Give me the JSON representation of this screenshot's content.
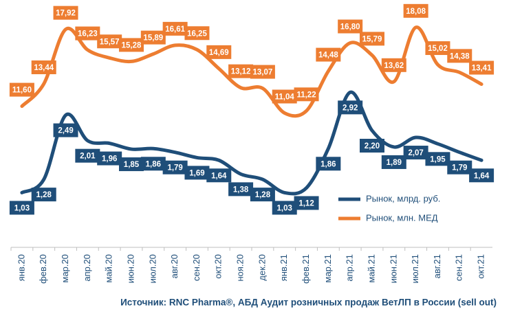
{
  "chart_data": {
    "type": "line",
    "categories": [
      "янв.20",
      "фев.20",
      "мар.20",
      "апр.20",
      "май.20",
      "июн.20",
      "июл.20",
      "авг.20",
      "сен.20",
      "окт.20",
      "ноя.20",
      "дек.20",
      "янв.21",
      "фев.21",
      "мар.21",
      "апр.21",
      "май.21",
      "июн.21",
      "июл.21",
      "авг.21",
      "сен.21",
      "окт.21"
    ],
    "series": [
      {
        "name": "Рынок, млрд. руб.",
        "color": "#1f4e79",
        "values": [
          1.03,
          1.28,
          2.49,
          2.01,
          1.96,
          1.85,
          1.86,
          1.79,
          1.69,
          1.64,
          1.38,
          1.28,
          1.03,
          1.12,
          1.86,
          2.92,
          2.2,
          1.89,
          2.07,
          1.95,
          1.79,
          1.64
        ],
        "value_labels": [
          "1,03",
          "1,28",
          "2,49",
          "2,01",
          "1,96",
          "1,85",
          "1,86",
          "1,79",
          "1,69",
          "1,64",
          "1,38",
          "1,28",
          "1,03",
          "1,12",
          "1,86",
          "2,92",
          "2,20",
          "1,89",
          "2,07",
          "1,95",
          "1,79",
          "1,64"
        ]
      },
      {
        "name": "Рынок, млн. МЕД",
        "color": "#ed7d31",
        "axis": "y2",
        "values": [
          11.6,
          13.44,
          17.92,
          16.23,
          15.57,
          15.28,
          15.89,
          16.61,
          16.25,
          14.69,
          13.12,
          13.07,
          11.04,
          11.22,
          14.48,
          16.8,
          15.79,
          13.62,
          18.08,
          15.02,
          14.38,
          13.41
        ],
        "value_labels": [
          "11,60",
          "13,44",
          "17,92",
          "16,23",
          "15,57",
          "15,28",
          "15,89",
          "16,61",
          "16,25",
          "14,69",
          "13,12",
          "13,07",
          "11,04",
          "11,22",
          "14,48",
          "16,80",
          "15,79",
          "13,62",
          "18,08",
          "15,02",
          "14,38",
          "13,41"
        ]
      }
    ],
    "ylim": [
      0,
      4.4
    ],
    "y2lim": [
      0,
      19.2
    ],
    "legend": "right",
    "source": "Источник: RNC Pharma®, АБД Аудит розничных продаж ВетЛП в России (sell out)"
  }
}
